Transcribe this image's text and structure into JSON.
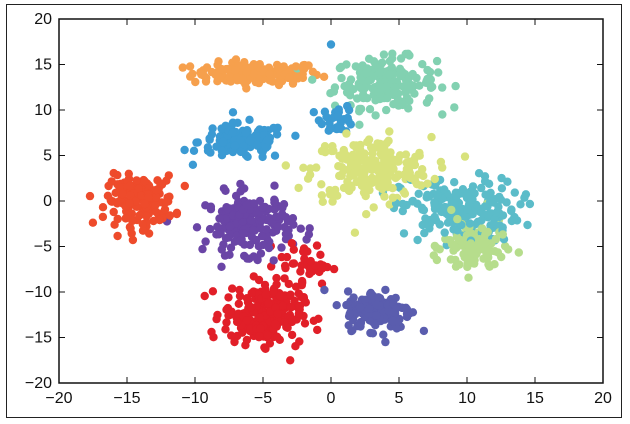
{
  "chart_data": {
    "type": "scatter",
    "title": "",
    "xlabel": "",
    "ylabel": "",
    "xlim": [
      -20,
      20
    ],
    "ylim": [
      -20,
      20
    ],
    "x_ticks": [
      -20,
      -15,
      -10,
      -5,
      0,
      5,
      10,
      15,
      20
    ],
    "y_ticks": [
      -20,
      -15,
      -10,
      -5,
      0,
      5,
      10,
      15,
      20
    ],
    "x_tick_labels": [
      "−20",
      "−15",
      "−10",
      "−5",
      "0",
      "5",
      "10",
      "15",
      "20"
    ],
    "y_tick_labels": [
      "−20",
      "−15",
      "−10",
      "−5",
      "0",
      "5",
      "10",
      "15",
      "20"
    ],
    "grid": false,
    "legend": "none",
    "colors": [
      "#f6a04d",
      "#82d1b1",
      "#3b9ad3",
      "#d8e27c",
      "#5bbcc9",
      "#ee4b2b",
      "#6a45a6",
      "#b6dd8c",
      "#e11f28",
      "#5a5dae"
    ],
    "series": [
      {
        "color": "#f6a04d",
        "center": [
          -5.5,
          14.0
        ],
        "spread": [
          3.8,
          1.0
        ],
        "count": 150
      },
      {
        "color": "#82d1b1",
        "center": [
          4.0,
          13.0
        ],
        "spread": [
          3.0,
          2.2
        ],
        "count": 180
      },
      {
        "color": "#3b9ad3",
        "center": [
          -6.5,
          6.5
        ],
        "spread": [
          2.6,
          1.6
        ],
        "count": 130
      },
      {
        "color": "#3b9ad3",
        "center": [
          0.5,
          9.0
        ],
        "spread": [
          1.0,
          1.2
        ],
        "count": 30
      },
      {
        "color": "#d8e27c",
        "center": [
          3.0,
          3.5
        ],
        "spread": [
          3.5,
          2.8
        ],
        "count": 220
      },
      {
        "color": "#5bbcc9",
        "center": [
          9.5,
          -1.0
        ],
        "spread": [
          3.5,
          2.8
        ],
        "count": 200
      },
      {
        "color": "#ee4b2b",
        "center": [
          -14.0,
          0.0
        ],
        "spread": [
          2.0,
          2.2
        ],
        "count": 160
      },
      {
        "color": "#6a45a6",
        "center": [
          -6.0,
          -2.5
        ],
        "spread": [
          2.6,
          2.6
        ],
        "count": 200
      },
      {
        "color": "#b6dd8c",
        "center": [
          10.5,
          -5.0
        ],
        "spread": [
          1.8,
          2.6
        ],
        "count": 110
      },
      {
        "color": "#e11f28",
        "center": [
          -5.0,
          -12.5
        ],
        "spread": [
          2.3,
          2.6
        ],
        "count": 230
      },
      {
        "color": "#e11f28",
        "center": [
          -2.0,
          -7.0
        ],
        "spread": [
          1.6,
          1.8
        ],
        "count": 40
      },
      {
        "color": "#5a5dae",
        "center": [
          3.5,
          -12.0
        ],
        "spread": [
          1.9,
          1.7
        ],
        "count": 160
      }
    ],
    "sample_points": [
      {
        "x": 0,
        "y": 17.2,
        "color": "#3b9ad3"
      },
      {
        "x": 4.0,
        "y": -15.5,
        "color": "#5a5dae"
      },
      {
        "x": -3.0,
        "y": -17.5,
        "color": "#e11f28"
      }
    ]
  }
}
